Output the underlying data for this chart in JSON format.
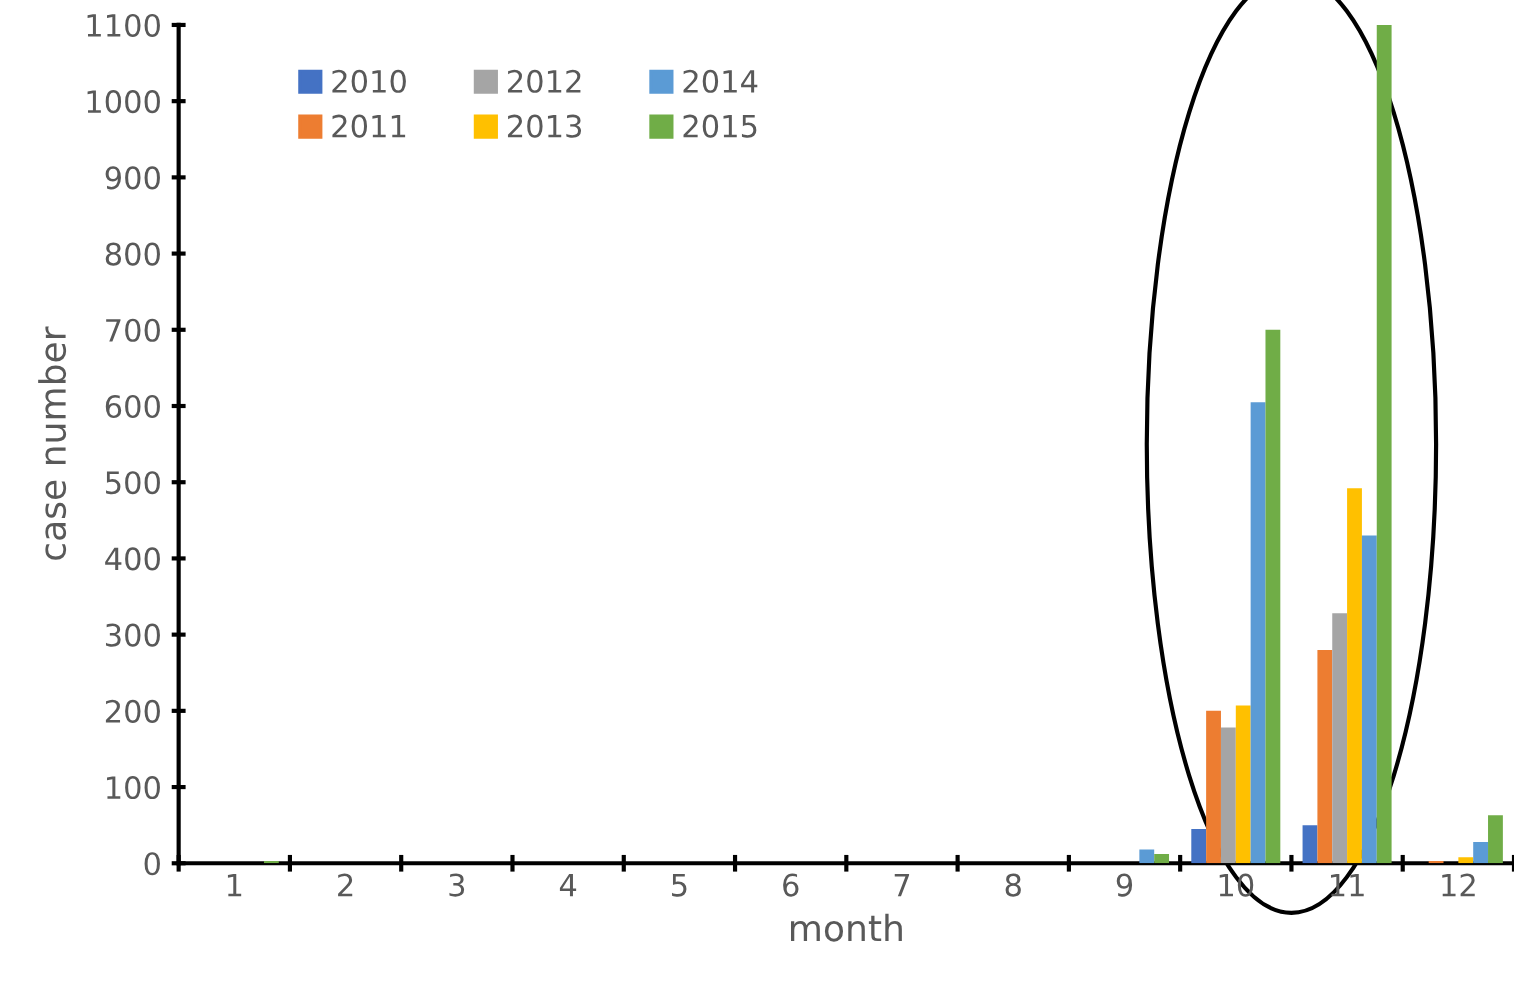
{
  "chart_data": {
    "type": "bar",
    "xlabel": "month",
    "ylabel": "case number",
    "categories": [
      "1",
      "2",
      "3",
      "4",
      "5",
      "6",
      "7",
      "8",
      "9",
      "10",
      "11",
      "12"
    ],
    "series": [
      {
        "name": "2010",
        "color": "#4472c4",
        "values": [
          0,
          0,
          0,
          0,
          0,
          0,
          0,
          0,
          0,
          45,
          50,
          0
        ]
      },
      {
        "name": "2011",
        "color": "#ed7d31",
        "values": [
          0,
          0,
          0,
          0,
          0,
          0,
          0,
          0,
          0,
          200,
          280,
          3
        ]
      },
      {
        "name": "2012",
        "color": "#a5a5a5",
        "values": [
          0,
          0,
          0,
          0,
          0,
          0,
          0,
          0,
          0,
          178,
          328,
          0
        ]
      },
      {
        "name": "2013",
        "color": "#ffc000",
        "values": [
          0,
          0,
          0,
          0,
          0,
          0,
          0,
          0,
          0,
          207,
          492,
          8
        ]
      },
      {
        "name": "2014",
        "color": "#5b9bd5",
        "values": [
          0,
          0,
          0,
          0,
          0,
          0,
          0,
          0,
          18,
          605,
          430,
          28
        ]
      },
      {
        "name": "2015",
        "color": "#70ad47",
        "values": [
          3,
          0,
          0,
          0,
          0,
          0,
          0,
          0,
          12,
          700,
          1100,
          63
        ]
      }
    ],
    "ylim": [
      0,
      1100
    ],
    "yticks": [
      0,
      100,
      200,
      300,
      400,
      500,
      600,
      700,
      800,
      900,
      1000,
      1100
    ],
    "grid": false,
    "legend": "top left"
  }
}
